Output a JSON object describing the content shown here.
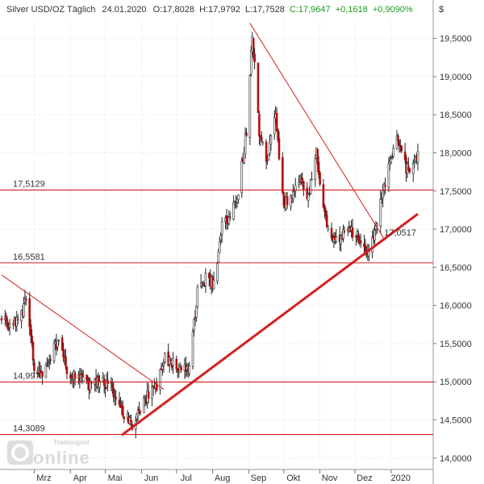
{
  "chart_data": {
    "type": "candlestick",
    "title": "Silver USD/OZ Täglich",
    "date": "24.01.2020",
    "ohlc_text": {
      "open": "O:17,8028",
      "high": "H:17,9792",
      "low": "L:17,7528",
      "close": "C:17,9647",
      "change": "+0,1618",
      "change_pct": "+0,9090%"
    },
    "currency_symbol": "$",
    "y_axis_side": "right",
    "ylim": [
      13.85,
      19.75
    ],
    "yticks": [
      14.0,
      14.5,
      15.0,
      15.5,
      16.0,
      16.5,
      17.0,
      17.5,
      18.0,
      18.5,
      19.0,
      19.5
    ],
    "ytick_labels": [
      "14,0000",
      "14,5000",
      "15,0000",
      "15,5000",
      "16,0000",
      "16,5000",
      "17,0000",
      "17,5000",
      "18,0000",
      "18,5000",
      "19,0000",
      "19,5000"
    ],
    "x_range": [
      "2019-02-01",
      "2020-01-24"
    ],
    "xticks": [
      {
        "date": "2019-03-01",
        "label": "Mrz"
      },
      {
        "date": "2019-04-01",
        "label": "Apr"
      },
      {
        "date": "2019-05-01",
        "label": "Mai"
      },
      {
        "date": "2019-06-01",
        "label": "Jun"
      },
      {
        "date": "2019-07-01",
        "label": "Jul"
      },
      {
        "date": "2019-08-01",
        "label": "Aug"
      },
      {
        "date": "2019-09-01",
        "label": "Sep"
      },
      {
        "date": "2019-10-01",
        "label": "Okt"
      },
      {
        "date": "2019-11-01",
        "label": "Nov"
      },
      {
        "date": "2019-12-01",
        "label": "Dez"
      },
      {
        "date": "2020-01-01",
        "label": "2020"
      }
    ],
    "horizontal_levels": [
      {
        "value": 17.5129,
        "label": "17,5129"
      },
      {
        "value": 16.5581,
        "label": "16,5581"
      },
      {
        "value": 14.997,
        "label": "14,997"
      },
      {
        "value": 14.3089,
        "label": "14,3089"
      }
    ],
    "trendlines": [
      {
        "name": "uptrend-support",
        "from": {
          "date": "2019-05-15",
          "value": 14.3
        },
        "to": {
          "date": "2020-01-24",
          "value": 17.2
        },
        "label": "17,0517",
        "weight": "bold"
      },
      {
        "name": "resistance-1",
        "from": {
          "date": "2019-02-01",
          "value": 16.4
        },
        "to": {
          "date": "2019-06-20",
          "value": 14.9
        },
        "weight": "thin"
      },
      {
        "name": "resistance-2",
        "from": {
          "date": "2019-09-02",
          "value": 19.7
        },
        "to": {
          "date": "2019-12-27",
          "value": 16.85
        },
        "weight": "thin"
      }
    ],
    "price_path": [
      [
        "2019-02-01",
        15.85
      ],
      [
        "2019-02-08",
        15.75
      ],
      [
        "2019-02-15",
        15.8
      ],
      [
        "2019-02-22",
        16.05
      ],
      [
        "2019-03-01",
        15.2
      ],
      [
        "2019-03-08",
        15.1
      ],
      [
        "2019-03-15",
        15.35
      ],
      [
        "2019-03-22",
        15.55
      ],
      [
        "2019-03-29",
        15.15
      ],
      [
        "2019-04-05",
        15.1
      ],
      [
        "2019-04-12",
        15.0
      ],
      [
        "2019-04-19",
        14.95
      ],
      [
        "2019-04-26",
        15.0
      ],
      [
        "2019-05-03",
        14.95
      ],
      [
        "2019-05-10",
        14.85
      ],
      [
        "2019-05-17",
        14.55
      ],
      [
        "2019-05-24",
        14.45
      ],
      [
        "2019-05-31",
        14.65
      ],
      [
        "2019-06-07",
        14.85
      ],
      [
        "2019-06-14",
        14.95
      ],
      [
        "2019-06-21",
        15.3
      ],
      [
        "2019-06-28",
        15.25
      ],
      [
        "2019-07-05",
        15.1
      ],
      [
        "2019-07-12",
        15.2
      ],
      [
        "2019-07-19",
        16.2
      ],
      [
        "2019-07-26",
        16.35
      ],
      [
        "2019-08-02",
        16.3
      ],
      [
        "2019-08-09",
        17.05
      ],
      [
        "2019-08-16",
        17.15
      ],
      [
        "2019-08-23",
        17.5
      ],
      [
        "2019-08-30",
        18.3
      ],
      [
        "2019-09-04",
        19.55
      ],
      [
        "2019-09-10",
        18.3
      ],
      [
        "2019-09-17",
        17.9
      ],
      [
        "2019-09-24",
        18.5
      ],
      [
        "2019-10-01",
        17.3
      ],
      [
        "2019-10-08",
        17.5
      ],
      [
        "2019-10-15",
        17.6
      ],
      [
        "2019-10-22",
        17.45
      ],
      [
        "2019-10-29",
        18.0
      ],
      [
        "2019-11-05",
        17.2
      ],
      [
        "2019-11-12",
        16.85
      ],
      [
        "2019-11-19",
        16.9
      ],
      [
        "2019-11-26",
        17.0
      ],
      [
        "2019-12-03",
        16.9
      ],
      [
        "2019-12-10",
        16.65
      ],
      [
        "2019-12-17",
        16.9
      ],
      [
        "2019-12-24",
        17.4
      ],
      [
        "2019-12-31",
        17.9
      ],
      [
        "2020-01-07",
        18.2
      ],
      [
        "2020-01-14",
        17.8
      ],
      [
        "2020-01-21",
        17.85
      ],
      [
        "2020-01-24",
        17.96
      ]
    ]
  },
  "watermark": {
    "brand": "Tradesignal",
    "wordmark": "online"
  }
}
